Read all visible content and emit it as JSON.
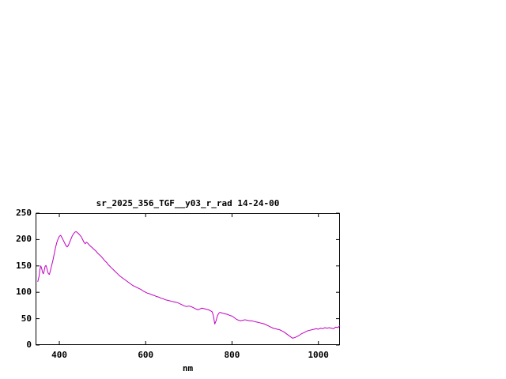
{
  "chart_data": {
    "type": "line",
    "title": "sr_2025_356_TGF__y03_r_rad 14-24-00",
    "xlabel": "nm",
    "ylabel": "",
    "xlim": [
      345,
      1050
    ],
    "ylim": [
      0,
      250
    ],
    "xticks": [
      400,
      600,
      800,
      1000
    ],
    "yticks": [
      0,
      50,
      100,
      150,
      200,
      250
    ],
    "grid": false,
    "legend": "none",
    "line_color": "#c000c0",
    "points": [
      [
        350,
        120
      ],
      [
        353,
        130
      ],
      [
        355,
        143
      ],
      [
        357,
        150
      ],
      [
        359,
        146
      ],
      [
        361,
        138
      ],
      [
        363,
        135
      ],
      [
        365,
        141
      ],
      [
        367,
        149
      ],
      [
        369,
        151
      ],
      [
        371,
        146
      ],
      [
        373,
        139
      ],
      [
        375,
        135
      ],
      [
        377,
        134
      ],
      [
        379,
        140
      ],
      [
        382,
        150
      ],
      [
        385,
        160
      ],
      [
        388,
        172
      ],
      [
        391,
        184
      ],
      [
        394,
        194
      ],
      [
        397,
        201
      ],
      [
        400,
        206
      ],
      [
        403,
        208
      ],
      [
        406,
        204
      ],
      [
        409,
        199
      ],
      [
        412,
        194
      ],
      [
        415,
        189
      ],
      [
        418,
        186
      ],
      [
        421,
        189
      ],
      [
        424,
        195
      ],
      [
        427,
        201
      ],
      [
        430,
        207
      ],
      [
        433,
        211
      ],
      [
        436,
        214
      ],
      [
        439,
        215
      ],
      [
        442,
        213
      ],
      [
        445,
        211
      ],
      [
        448,
        208
      ],
      [
        451,
        205
      ],
      [
        454,
        200
      ],
      [
        457,
        195
      ],
      [
        460,
        192
      ],
      [
        463,
        195
      ],
      [
        466,
        193
      ],
      [
        469,
        190
      ],
      [
        473,
        187
      ],
      [
        477,
        184
      ],
      [
        481,
        181
      ],
      [
        485,
        178
      ],
      [
        489,
        174
      ],
      [
        493,
        171
      ],
      [
        497,
        168
      ],
      [
        501,
        164
      ],
      [
        505,
        160
      ],
      [
        510,
        156
      ],
      [
        515,
        151
      ],
      [
        520,
        147
      ],
      [
        525,
        143
      ],
      [
        530,
        139
      ],
      [
        535,
        135
      ],
      [
        540,
        131
      ],
      [
        545,
        128
      ],
      [
        550,
        125
      ],
      [
        555,
        122
      ],
      [
        560,
        119
      ],
      [
        565,
        116
      ],
      [
        570,
        113
      ],
      [
        575,
        111
      ],
      [
        580,
        109
      ],
      [
        585,
        107
      ],
      [
        590,
        105
      ],
      [
        595,
        102
      ],
      [
        600,
        100
      ],
      [
        605,
        98
      ],
      [
        610,
        97
      ],
      [
        615,
        95
      ],
      [
        620,
        94
      ],
      [
        625,
        92
      ],
      [
        630,
        91
      ],
      [
        635,
        89
      ],
      [
        640,
        88
      ],
      [
        645,
        86
      ],
      [
        650,
        85
      ],
      [
        655,
        84
      ],
      [
        660,
        83
      ],
      [
        665,
        82
      ],
      [
        670,
        81
      ],
      [
        675,
        80
      ],
      [
        680,
        78
      ],
      [
        685,
        76
      ],
      [
        690,
        74
      ],
      [
        695,
        73
      ],
      [
        700,
        74
      ],
      [
        705,
        73
      ],
      [
        710,
        71
      ],
      [
        715,
        69
      ],
      [
        720,
        67
      ],
      [
        725,
        68
      ],
      [
        730,
        70
      ],
      [
        735,
        69
      ],
      [
        740,
        68
      ],
      [
        745,
        67
      ],
      [
        750,
        65
      ],
      [
        754,
        63
      ],
      [
        757,
        55
      ],
      [
        760,
        40
      ],
      [
        763,
        46
      ],
      [
        766,
        55
      ],
      [
        769,
        60
      ],
      [
        772,
        62
      ],
      [
        776,
        61
      ],
      [
        780,
        60
      ],
      [
        785,
        59
      ],
      [
        790,
        58
      ],
      [
        795,
        56
      ],
      [
        800,
        55
      ],
      [
        805,
        52
      ],
      [
        810,
        49
      ],
      [
        815,
        47
      ],
      [
        820,
        46
      ],
      [
        825,
        47
      ],
      [
        830,
        48
      ],
      [
        835,
        47
      ],
      [
        840,
        46
      ],
      [
        845,
        46
      ],
      [
        850,
        45
      ],
      [
        855,
        44
      ],
      [
        860,
        43
      ],
      [
        865,
        42
      ],
      [
        870,
        41
      ],
      [
        875,
        40
      ],
      [
        880,
        38
      ],
      [
        885,
        36
      ],
      [
        890,
        34
      ],
      [
        895,
        32
      ],
      [
        900,
        31
      ],
      [
        905,
        30
      ],
      [
        910,
        29
      ],
      [
        915,
        27
      ],
      [
        920,
        25
      ],
      [
        925,
        22
      ],
      [
        930,
        19
      ],
      [
        935,
        16
      ],
      [
        940,
        13
      ],
      [
        945,
        14
      ],
      [
        950,
        16
      ],
      [
        955,
        18
      ],
      [
        960,
        21
      ],
      [
        965,
        23
      ],
      [
        970,
        25
      ],
      [
        975,
        27
      ],
      [
        980,
        28
      ],
      [
        985,
        29
      ],
      [
        990,
        30
      ],
      [
        995,
        31
      ],
      [
        1000,
        30
      ],
      [
        1005,
        32
      ],
      [
        1010,
        31
      ],
      [
        1015,
        33
      ],
      [
        1020,
        32
      ],
      [
        1025,
        33
      ],
      [
        1030,
        32
      ],
      [
        1035,
        31
      ],
      [
        1040,
        34
      ],
      [
        1045,
        33
      ],
      [
        1050,
        37
      ]
    ]
  }
}
